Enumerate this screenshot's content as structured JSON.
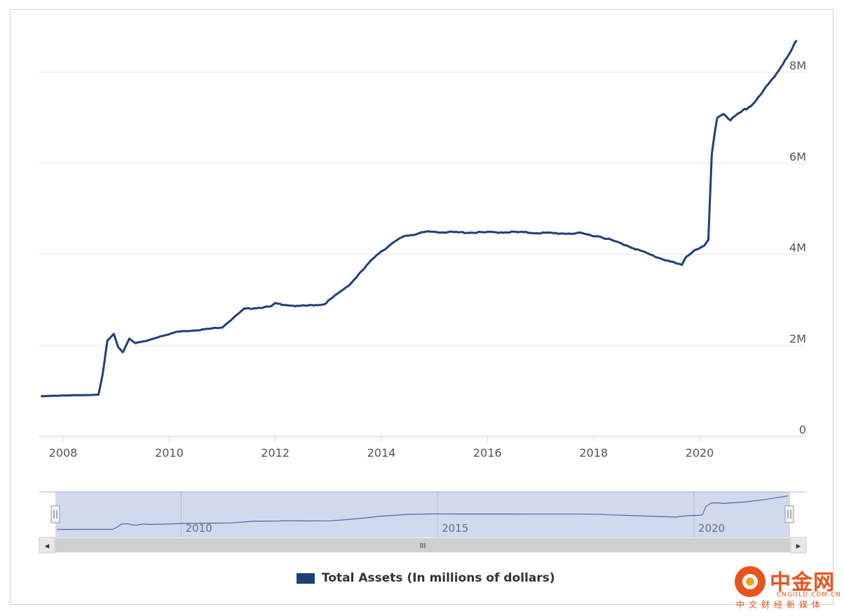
{
  "chart_data": {
    "type": "line",
    "title": "",
    "xlabel": "",
    "ylabel": "",
    "x_ticks": [
      "2008",
      "2010",
      "2012",
      "2014",
      "2016",
      "2018",
      "2020"
    ],
    "y_ticks": [
      "0",
      "2M",
      "4M",
      "6M",
      "8M"
    ],
    "ylim": [
      0,
      8000000
    ],
    "grid": "horizontal",
    "legend_position": "bottom",
    "series": [
      {
        "name": "Total Assets (In millions of dollars)",
        "color": "#1f3f77",
        "x": [
          "2007-08-01",
          "2008-01-01",
          "2008-06-01",
          "2008-09-01",
          "2008-10-01",
          "2008-11-01",
          "2008-12-15",
          "2009-01-15",
          "2009-02-15",
          "2009-04-01",
          "2009-05-15",
          "2009-08-01",
          "2009-11-01",
          "2010-03-01",
          "2010-09-01",
          "2011-01-01",
          "2011-06-01",
          "2011-12-01",
          "2012-01-01",
          "2012-06-01",
          "2012-12-01",
          "2013-06-01",
          "2013-12-01",
          "2014-06-01",
          "2014-12-01",
          "2015-06-01",
          "2016-01-01",
          "2016-06-01",
          "2017-01-01",
          "2017-06-01",
          "2017-10-01",
          "2018-03-01",
          "2018-09-01",
          "2019-03-01",
          "2019-09-01",
          "2019-10-01",
          "2019-12-01",
          "2020-02-01",
          "2020-03-01",
          "2020-03-25",
          "2020-05-01",
          "2020-06-15",
          "2020-08-01",
          "2021-01-01",
          "2021-06-01",
          "2021-11-01"
        ],
        "values": [
          880000,
          900000,
          905000,
          920000,
          1400000,
          2100000,
          2250000,
          1950000,
          1850000,
          2150000,
          2050000,
          2100000,
          2200000,
          2300000,
          2350000,
          2400000,
          2800000,
          2850000,
          2920000,
          2860000,
          2900000,
          3350000,
          4000000,
          4400000,
          4500000,
          4480000,
          4480000,
          4490000,
          4470000,
          4460000,
          4460000,
          4380000,
          4180000,
          3950000,
          3760000,
          3950000,
          4100000,
          4180000,
          4300000,
          6200000,
          7000000,
          7100000,
          6950000,
          7300000,
          7900000,
          8700000
        ]
      }
    ],
    "navigator": {
      "x_ticks": [
        "2010",
        "2015",
        "2020"
      ]
    }
  },
  "legend": {
    "label": "Total Assets (In millions of dollars)",
    "color": "#1f3f77"
  },
  "scrollbar": {
    "left_arrow": "◂",
    "right_arrow": "▸",
    "grip": "III"
  },
  "watermark": {
    "title": "中金网",
    "domain": "CNGOLD.COM.CN",
    "subtitle": "中文财经新媒体"
  }
}
